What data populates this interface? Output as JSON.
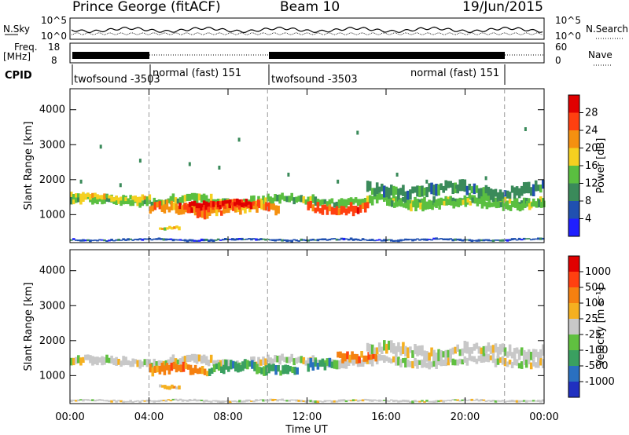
{
  "header": {
    "station": "Prince George (fitACF)",
    "beam": "Beam 10",
    "date": "19/Jun/2015"
  },
  "summary": {
    "nsky_label": "N.Sky",
    "nsky_ticks": [
      "10^5",
      "10^0"
    ],
    "nsearch_label": "N.Search",
    "nsearch_ticks": [
      "10^5",
      "10^0"
    ],
    "freq_label_1": "Freq.",
    "freq_label_2": "[MHz]",
    "freq_ticks": [
      "18",
      "8"
    ],
    "nave_label": "Nave",
    "nave_ticks": [
      "60",
      "0"
    ],
    "cpid_label": "CPID",
    "cpid_segments": [
      {
        "label": "twofsound -3503",
        "start_hour": 0
      },
      {
        "label": "normal (fast) 151",
        "start_hour": 4
      },
      {
        "label": "twofsound -3503",
        "start_hour": 10
      },
      {
        "label": "normal (fast) 151",
        "start_hour": 22
      }
    ]
  },
  "chart_data": [
    {
      "type": "heatmap",
      "name": "power",
      "ylabel": "Slant Range [km]",
      "yticks": [
        "1000",
        "2000",
        "3000",
        "4000"
      ],
      "ylim": [
        200,
        4600
      ],
      "colorbar_label": "Power [dB]",
      "colorbar_ticks": [
        "4",
        "8",
        "12",
        "16",
        "20",
        "24",
        "28"
      ],
      "colors": [
        "#1f1fff",
        "#2050b0",
        "#3a8a5a",
        "#5abf40",
        "#f5d020",
        "#f59010",
        "#ff4010",
        "#e00000"
      ],
      "bands": [
        {
          "t0": 0,
          "t1": 24,
          "r": 1400,
          "w": 230,
          "level": 3
        },
        {
          "t0": 0,
          "t1": 4,
          "r": 1500,
          "w": 150,
          "level": 4
        },
        {
          "t0": 4,
          "t1": 10.5,
          "r": 1150,
          "w": 250,
          "level": 5
        },
        {
          "t0": 5.5,
          "t1": 9.5,
          "r": 1250,
          "w": 200,
          "level": 6
        },
        {
          "t0": 6,
          "t1": 9,
          "r": 1300,
          "w": 150,
          "level": 7
        },
        {
          "t0": 4.5,
          "t1": 5.5,
          "r": 650,
          "w": 100,
          "level": 4
        },
        {
          "t0": 12,
          "t1": 15,
          "r": 1200,
          "w": 250,
          "level": 6
        },
        {
          "t0": 16,
          "t1": 24,
          "r": 1300,
          "w": 200,
          "level": 3
        },
        {
          "t0": 15,
          "t1": 24,
          "r": 1700,
          "w": 300,
          "level": 2
        },
        {
          "t0": 0,
          "t1": 24,
          "r": 280,
          "w": 60,
          "level": 1
        }
      ],
      "scatter_t": [
        0.5,
        1.5,
        2.5,
        3.5,
        6.0,
        7.5,
        8.5,
        11.0,
        13.5,
        14.5,
        16.5,
        18.0,
        19.5,
        21.0,
        23.0
      ],
      "scatter_r": [
        2000,
        3000,
        1900,
        2600,
        2500,
        2400,
        3200,
        2200,
        2000,
        3400,
        2200,
        2000,
        1850,
        2100,
        3500
      ]
    },
    {
      "type": "heatmap",
      "name": "velocity",
      "ylabel": "Slant Range [km]",
      "yticks": [
        "1000",
        "2000",
        "3000",
        "4000"
      ],
      "ylim": [
        200,
        4600
      ],
      "xlabel": "Time UT",
      "xticks": [
        "00:00",
        "04:00",
        "08:00",
        "12:00",
        "16:00",
        "20:00",
        "00:00"
      ],
      "xlim": [
        0,
        24
      ],
      "colorbar_label": "Velocity [m s⁻¹]",
      "colorbar_ticks": [
        "1000",
        "500",
        "100",
        "25",
        "-25",
        "-100",
        "-500",
        "-1000"
      ],
      "colors": [
        "#2030c0",
        "#2a70c0",
        "#3aa060",
        "#60c040",
        "#c8c8c8",
        "#f5b020",
        "#f58010",
        "#ff4010",
        "#e00000"
      ],
      "bands": [
        {
          "t0": 0,
          "t1": 24,
          "r": 1400,
          "w": 230,
          "level": 4
        },
        {
          "t0": 4,
          "t1": 7,
          "r": 1150,
          "w": 250,
          "level": 6
        },
        {
          "t0": 4.5,
          "t1": 5.5,
          "r": 650,
          "w": 100,
          "level": 5
        },
        {
          "t0": 7,
          "t1": 11.5,
          "r": 1200,
          "w": 250,
          "level": 2
        },
        {
          "t0": 12,
          "t1": 13.5,
          "r": 1250,
          "w": 250,
          "level": 2
        },
        {
          "t0": 13.5,
          "t1": 15.5,
          "r": 1600,
          "w": 250,
          "level": 6
        },
        {
          "t0": 15,
          "t1": 24,
          "r": 1700,
          "w": 300,
          "level": 4
        },
        {
          "t0": 0,
          "t1": 24,
          "r": 280,
          "w": 60,
          "level": 4
        }
      ]
    }
  ]
}
